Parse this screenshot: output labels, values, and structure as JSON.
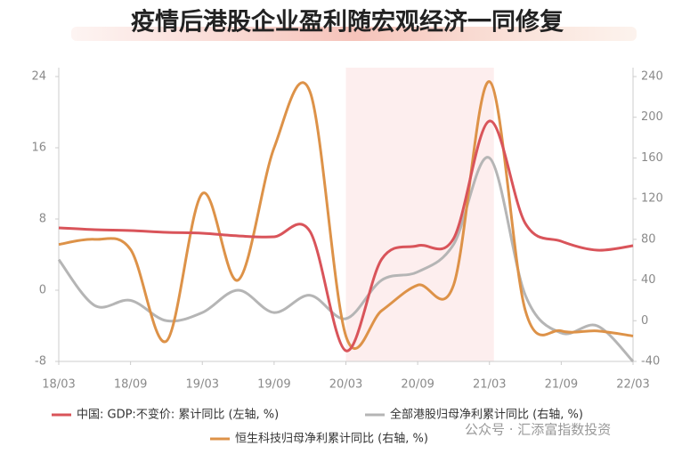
{
  "chart_data": {
    "type": "line",
    "title": "疫情后港股企业盈利随宏观经济一同修复",
    "watermark": "公众号 · 汇添富指数投资",
    "categories": [
      "18/03",
      null,
      "18/09",
      null,
      "19/03",
      null,
      "19/09",
      null,
      "20/03",
      null,
      "20/09",
      null,
      "21/03",
      null,
      "21/09",
      null,
      "22/03"
    ],
    "ylim": [
      -8,
      24
    ],
    "yticks": [
      -8,
      0,
      8,
      16,
      24
    ],
    "y2lim": [
      -40,
      240
    ],
    "y2ticks": [
      -40,
      0,
      40,
      80,
      120,
      160,
      200,
      240
    ],
    "legend": "bottom",
    "series": [
      {
        "name": "中国: GDP:不变价: 累计同比 (左轴, %)",
        "color": "#d9545a",
        "values": [
          7,
          6.8,
          6.7,
          6.5,
          6.4,
          6.1,
          6.0,
          6.6,
          -6.8,
          3.5,
          5,
          5.8,
          19,
          7.5,
          5.5,
          4.5,
          5
        ]
      },
      {
        "name": "全部港股归母净利累计同比 (右轴, %)",
        "color": "#b5b5b5",
        "axis": "y2",
        "values": [
          60,
          15,
          20,
          0,
          8,
          30,
          8,
          25,
          2,
          40,
          48,
          75,
          160,
          25,
          -12,
          -5,
          -40
        ]
      },
      {
        "name": "恒生科技归母净利累计同比 (右轴, %)",
        "color": "#dd9248",
        "axis": "y2",
        "values": [
          75,
          80,
          70,
          -20,
          125,
          40,
          170,
          225,
          -15,
          10,
          35,
          35,
          235,
          10,
          -10,
          -10,
          -15
        ]
      }
    ]
  }
}
